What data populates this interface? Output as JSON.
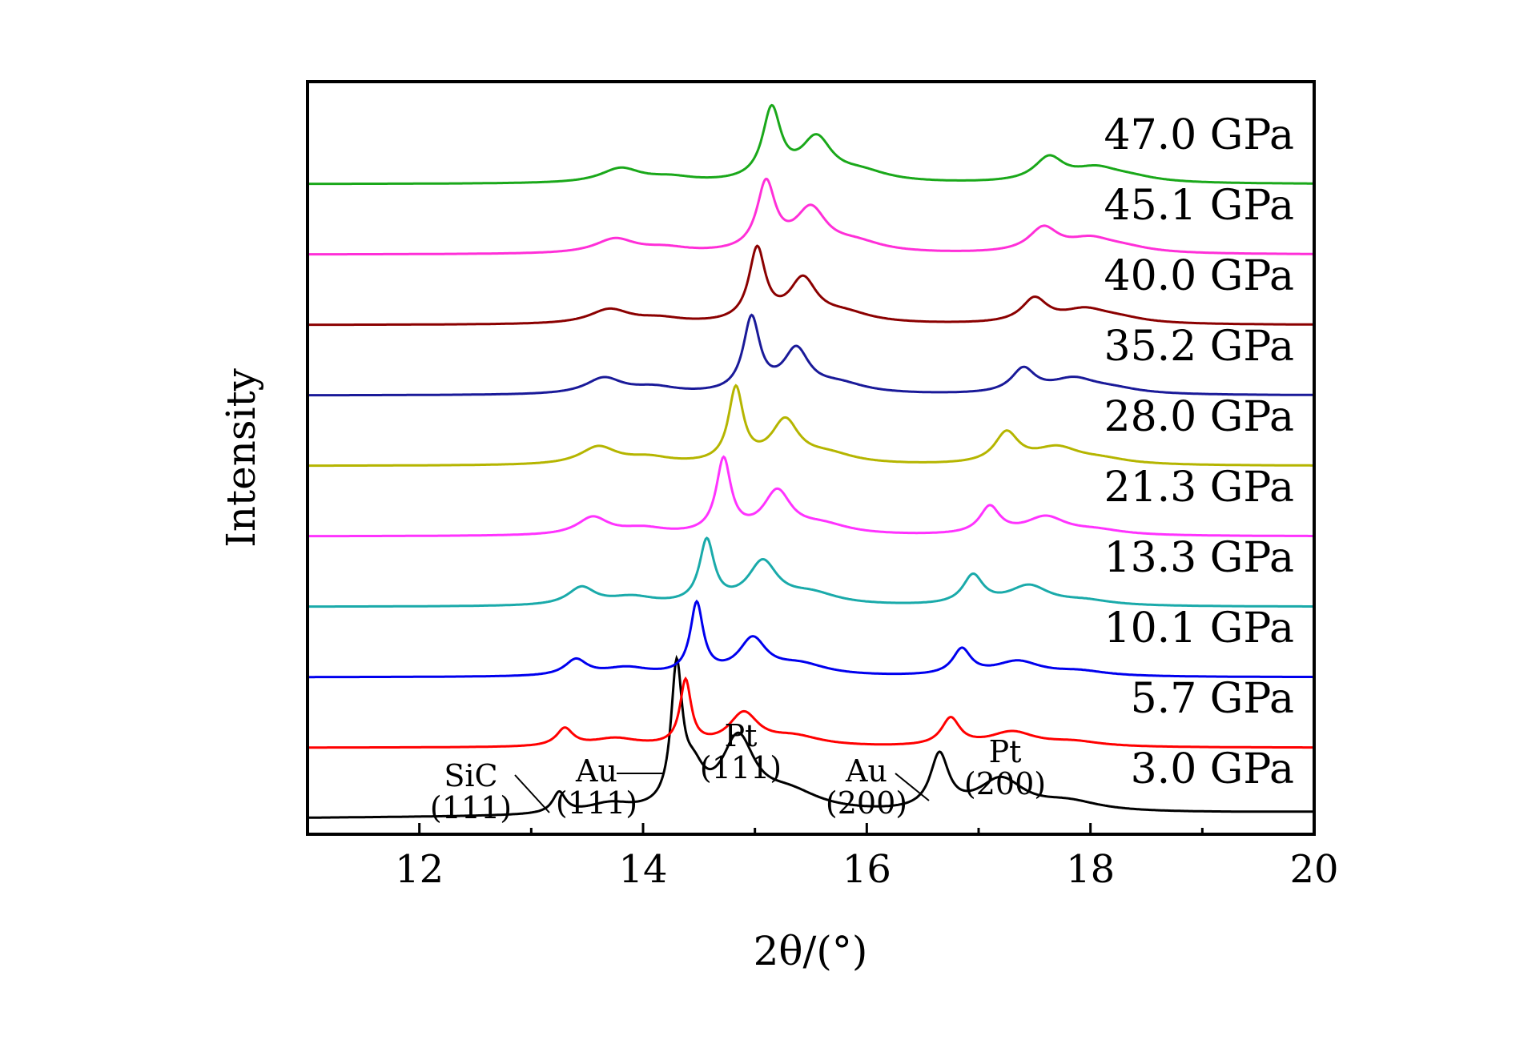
{
  "chart_data": {
    "type": "line",
    "xlabel": "2θ/(°)",
    "ylabel": "Intensity",
    "xlim": [
      11,
      20
    ],
    "x_ticks": [
      "12",
      "14",
      "16",
      "18",
      "20"
    ],
    "grid": false,
    "legend": "labels at right end of each curve",
    "series": [
      {
        "name": "3.0 GPa",
        "color": "#000000",
        "offset": 0,
        "base": 0.3,
        "peaks": [
          [
            13.25,
            0.65,
            0.07
          ],
          [
            13.7,
            0.3,
            0.25
          ],
          [
            14.3,
            4.2,
            0.06
          ],
          [
            14.45,
            1.0,
            0.12
          ],
          [
            14.85,
            2.2,
            0.18
          ],
          [
            15.3,
            0.6,
            0.35
          ],
          [
            16.65,
            1.7,
            0.1
          ],
          [
            17.2,
            1.0,
            0.25
          ],
          [
            17.8,
            0.3,
            0.35
          ]
        ]
      },
      {
        "name": "5.7 GPa",
        "color": "#ff0000",
        "offset": 1,
        "base": 0.0,
        "peaks": [
          [
            13.3,
            0.55,
            0.09
          ],
          [
            13.75,
            0.25,
            0.25
          ],
          [
            14.38,
            2.0,
            0.06
          ],
          [
            14.9,
            1.0,
            0.16
          ],
          [
            15.35,
            0.3,
            0.3
          ],
          [
            16.75,
            0.85,
            0.1
          ],
          [
            17.3,
            0.45,
            0.25
          ],
          [
            17.85,
            0.15,
            0.3
          ]
        ]
      },
      {
        "name": "10.1 GPa",
        "color": "#0000ee",
        "offset": 2,
        "base": 0.0,
        "peaks": [
          [
            13.4,
            0.5,
            0.12
          ],
          [
            13.85,
            0.25,
            0.25
          ],
          [
            14.48,
            2.2,
            0.07
          ],
          [
            14.98,
            1.1,
            0.15
          ],
          [
            15.4,
            0.35,
            0.3
          ],
          [
            16.85,
            0.8,
            0.1
          ],
          [
            17.35,
            0.45,
            0.25
          ],
          [
            17.9,
            0.15,
            0.3
          ]
        ]
      },
      {
        "name": "13.3 GPa",
        "color": "#1aaaaa",
        "offset": 3,
        "base": 0.0,
        "peaks": [
          [
            13.45,
            0.55,
            0.15
          ],
          [
            13.9,
            0.25,
            0.25
          ],
          [
            14.57,
            1.95,
            0.08
          ],
          [
            15.07,
            1.3,
            0.16
          ],
          [
            15.5,
            0.35,
            0.3
          ],
          [
            16.95,
            0.9,
            0.11
          ],
          [
            17.45,
            0.6,
            0.22
          ],
          [
            17.95,
            0.15,
            0.3
          ]
        ]
      },
      {
        "name": "21.3 GPa",
        "color": "#ff33ff",
        "offset": 4,
        "base": 0.0,
        "peaks": [
          [
            13.55,
            0.55,
            0.17
          ],
          [
            14.0,
            0.2,
            0.25
          ],
          [
            14.72,
            2.3,
            0.08
          ],
          [
            15.2,
            1.3,
            0.15
          ],
          [
            15.6,
            0.3,
            0.3
          ],
          [
            17.1,
            0.85,
            0.11
          ],
          [
            17.6,
            0.55,
            0.22
          ],
          [
            18.05,
            0.15,
            0.3
          ]
        ]
      },
      {
        "name": "28.0 GPa",
        "color": "#b5b500",
        "offset": 5,
        "base": 0.0,
        "peaks": [
          [
            13.6,
            0.55,
            0.2
          ],
          [
            14.05,
            0.2,
            0.25
          ],
          [
            14.83,
            2.3,
            0.08
          ],
          [
            15.27,
            1.3,
            0.15
          ],
          [
            15.65,
            0.3,
            0.3
          ],
          [
            17.25,
            0.95,
            0.13
          ],
          [
            17.7,
            0.5,
            0.25
          ],
          [
            18.1,
            0.15,
            0.3
          ]
        ]
      },
      {
        "name": "35.2 GPa",
        "color": "#1a1a99",
        "offset": 6,
        "base": 0.0,
        "peaks": [
          [
            13.65,
            0.5,
            0.2
          ],
          [
            14.1,
            0.2,
            0.25
          ],
          [
            14.97,
            2.3,
            0.09
          ],
          [
            15.37,
            1.3,
            0.14
          ],
          [
            15.75,
            0.3,
            0.3
          ],
          [
            17.4,
            0.75,
            0.13
          ],
          [
            17.85,
            0.45,
            0.25
          ],
          [
            18.2,
            0.15,
            0.3
          ]
        ]
      },
      {
        "name": "40.0 GPa",
        "color": "#8b0000",
        "offset": 7,
        "base": 0.0,
        "peaks": [
          [
            13.7,
            0.45,
            0.22
          ],
          [
            14.15,
            0.15,
            0.25
          ],
          [
            15.02,
            2.25,
            0.09
          ],
          [
            15.43,
            1.3,
            0.15
          ],
          [
            15.8,
            0.3,
            0.3
          ],
          [
            17.5,
            0.75,
            0.14
          ],
          [
            17.95,
            0.4,
            0.25
          ],
          [
            18.25,
            0.15,
            0.3
          ]
        ]
      },
      {
        "name": "45.1 GPa",
        "color": "#ff2fd8",
        "offset": 8,
        "base": 0.0,
        "peaks": [
          [
            13.75,
            0.45,
            0.22
          ],
          [
            14.2,
            0.15,
            0.25
          ],
          [
            15.1,
            2.1,
            0.1
          ],
          [
            15.5,
            1.3,
            0.17
          ],
          [
            15.9,
            0.3,
            0.3
          ],
          [
            17.58,
            0.75,
            0.16
          ],
          [
            18.0,
            0.4,
            0.25
          ],
          [
            18.3,
            0.15,
            0.3
          ]
        ]
      },
      {
        "name": "47.0 GPa",
        "color": "#1aa81a",
        "offset": 9,
        "base": 0.0,
        "peaks": [
          [
            13.8,
            0.45,
            0.22
          ],
          [
            14.25,
            0.15,
            0.25
          ],
          [
            15.15,
            2.2,
            0.1
          ],
          [
            15.55,
            1.3,
            0.17
          ],
          [
            15.95,
            0.3,
            0.3
          ],
          [
            17.63,
            0.75,
            0.16
          ],
          [
            18.05,
            0.4,
            0.25
          ],
          [
            18.35,
            0.15,
            0.3
          ]
        ]
      }
    ],
    "annotations": [
      {
        "line1": "SiC",
        "line2": "(111)",
        "x": 13.25
      },
      {
        "line1": "Au",
        "line2": "(111)",
        "x": 14.3
      },
      {
        "line1": "Pt",
        "line2": "(111)",
        "x": 14.85
      },
      {
        "line1": "Au",
        "line2": "(200)",
        "x": 16.65
      },
      {
        "line1": "Pt",
        "line2": "(200)",
        "x": 17.2
      }
    ]
  }
}
